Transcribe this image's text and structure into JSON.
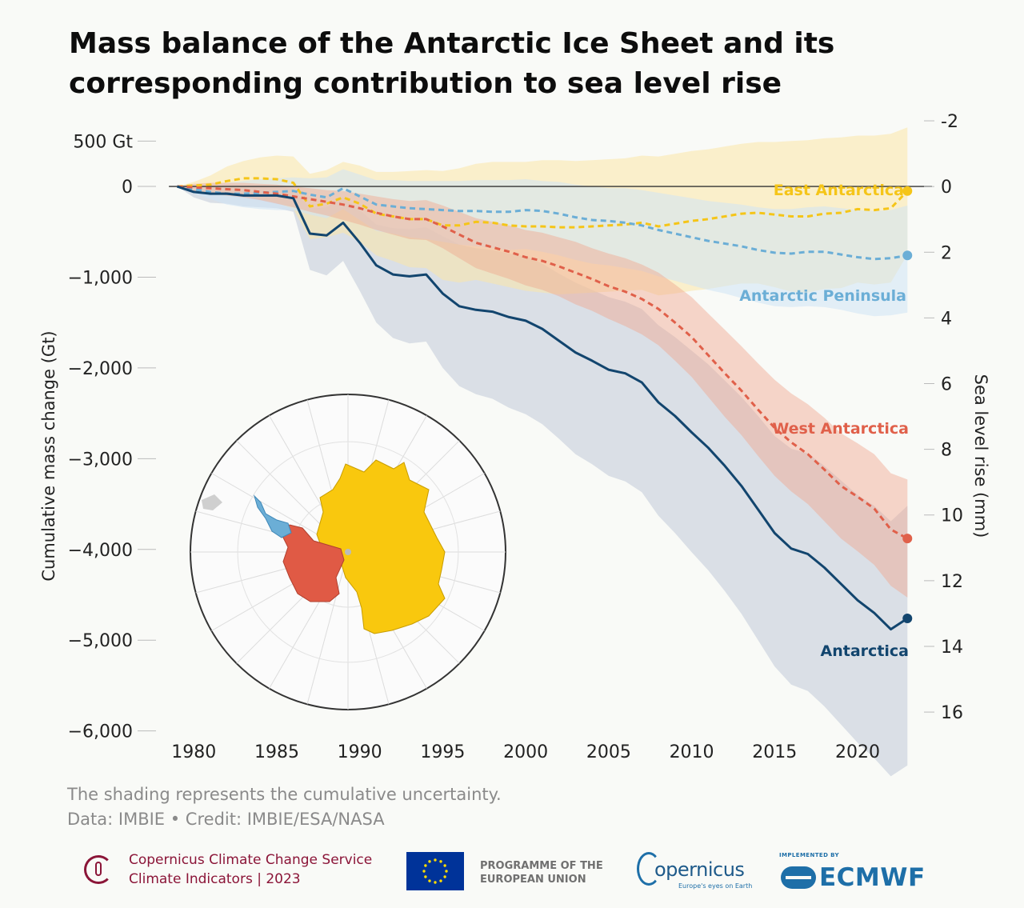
{
  "title": "Mass balance of the Antarctic Ice Sheet and its corresponding contribution to sea level rise",
  "note": {
    "shading": "The shading represents the cumulative uncertainty.",
    "credit": "Data: IMBIE • Credit: IMBIE/ESA/NASA"
  },
  "map_icon": "antarctica-region-map-icon",
  "chart_data": {
    "type": "line",
    "title": "Mass balance of the Antarctic Ice Sheet and its corresponding contribution to sea level rise",
    "xlabel": "",
    "ylabel": "Cumulative mass change (Gt)",
    "y2label": "Sea level rise (mm)",
    "xlim": [
      1977,
      2024
    ],
    "ylim": [
      -6100,
      600
    ],
    "y2lim": [
      16.85,
      -1.66
    ],
    "grid": false,
    "x_ticks": [
      1980,
      1985,
      1990,
      1995,
      2000,
      2005,
      2010,
      2015,
      2020
    ],
    "x_tick_labels": [
      "1980",
      "1985",
      "1990",
      "1995",
      "2000",
      "2005",
      "2010",
      "2015",
      "2020"
    ],
    "y_ticks": [
      500,
      0,
      -1000,
      -2000,
      -3000,
      -4000,
      -5000,
      -6000
    ],
    "y_tick_labels": [
      "500 Gt",
      "0",
      "−1,000",
      "−2,000",
      "−3,000",
      "−4,000",
      "−5,000",
      "−6,000"
    ],
    "y2_ticks": [
      -2,
      0,
      2,
      4,
      6,
      8,
      10,
      12,
      14,
      16
    ],
    "y2_tick_labels": [
      "-2",
      "0",
      "2",
      "4",
      "6",
      "8",
      "10",
      "12",
      "14",
      "16"
    ],
    "x": [
      1979,
      1980,
      1981,
      1982,
      1983,
      1984,
      1985,
      1986,
      1987,
      1988,
      1989,
      1990,
      1991,
      1992,
      1993,
      1994,
      1995,
      1996,
      1997,
      1998,
      1999,
      2000,
      2001,
      2002,
      2003,
      2004,
      2005,
      2006,
      2007,
      2008,
      2009,
      2010,
      2011,
      2012,
      2013,
      2014,
      2015,
      2016,
      2017,
      2018,
      2019,
      2020,
      2021,
      2022,
      2023
    ],
    "series": [
      {
        "name": "East Antarctica",
        "color": "#f5c518",
        "style": "dashed",
        "end_marker": true,
        "values": [
          0,
          10,
          20,
          60,
          90,
          90,
          80,
          40,
          -220,
          -190,
          -120,
          -190,
          -300,
          -330,
          -360,
          -360,
          -430,
          -430,
          -390,
          -400,
          -430,
          -440,
          -440,
          -450,
          -450,
          -440,
          -430,
          -420,
          -400,
          -440,
          -410,
          -380,
          -360,
          -330,
          -300,
          -290,
          -310,
          -330,
          -330,
          -300,
          -290,
          -250,
          -260,
          -240,
          -50
        ],
        "upper": [
          0,
          50,
          120,
          220,
          280,
          320,
          340,
          330,
          140,
          180,
          270,
          230,
          160,
          160,
          170,
          180,
          170,
          200,
          250,
          270,
          270,
          270,
          290,
          290,
          280,
          290,
          300,
          310,
          340,
          330,
          360,
          390,
          410,
          440,
          470,
          490,
          490,
          500,
          510,
          530,
          540,
          560,
          560,
          580,
          650
        ],
        "lower": [
          0,
          -50,
          -90,
          -100,
          -100,
          -140,
          -180,
          -250,
          -580,
          -560,
          -510,
          -610,
          -760,
          -820,
          -890,
          -900,
          -1030,
          -1060,
          -1030,
          -1070,
          -1110,
          -1150,
          -1170,
          -1190,
          -1180,
          -1170,
          -1160,
          -1150,
          -1140,
          -1200,
          -1180,
          -1150,
          -1130,
          -1100,
          -1070,
          -1070,
          -1110,
          -1160,
          -1170,
          -1130,
          -1120,
          -1060,
          -1080,
          -1060,
          -750
        ]
      },
      {
        "name": "Antarctic Peninsula",
        "color": "#6baed6",
        "style": "dashed",
        "end_marker": true,
        "values": [
          0,
          -30,
          -60,
          -80,
          -80,
          -70,
          -60,
          -50,
          -90,
          -120,
          -20,
          -110,
          -200,
          -220,
          -240,
          -250,
          -260,
          -270,
          -270,
          -280,
          -280,
          -260,
          -270,
          -300,
          -340,
          -370,
          -380,
          -400,
          -430,
          -480,
          -520,
          -560,
          -600,
          -630,
          -660,
          -700,
          -730,
          -740,
          -720,
          -720,
          -750,
          -780,
          -800,
          -790,
          -760
        ],
        "upper": [
          0,
          20,
          30,
          40,
          60,
          80,
          90,
          100,
          90,
          100,
          190,
          130,
          70,
          70,
          60,
          60,
          60,
          60,
          70,
          70,
          70,
          80,
          60,
          50,
          20,
          0,
          -20,
          -20,
          -40,
          -70,
          -100,
          -130,
          -160,
          -180,
          -200,
          -230,
          -250,
          -250,
          -230,
          -220,
          -240,
          -260,
          -270,
          -260,
          -210
        ],
        "lower": [
          0,
          -80,
          -140,
          -200,
          -230,
          -250,
          -260,
          -260,
          -310,
          -350,
          -250,
          -370,
          -490,
          -520,
          -560,
          -580,
          -610,
          -640,
          -660,
          -680,
          -700,
          -690,
          -720,
          -760,
          -810,
          -850,
          -870,
          -900,
          -930,
          -990,
          -1040,
          -1090,
          -1140,
          -1180,
          -1230,
          -1280,
          -1320,
          -1330,
          -1320,
          -1330,
          -1360,
          -1400,
          -1430,
          -1420,
          -1390
        ]
      },
      {
        "name": "West Antarctica",
        "color": "#e0604a",
        "style": "dashed",
        "end_marker": true,
        "values": [
          0,
          -10,
          -20,
          -30,
          -40,
          -60,
          -80,
          -110,
          -140,
          -170,
          -200,
          -240,
          -290,
          -330,
          -360,
          -360,
          -440,
          -530,
          -620,
          -670,
          -720,
          -780,
          -820,
          -880,
          -950,
          -1020,
          -1100,
          -1160,
          -1240,
          -1350,
          -1500,
          -1660,
          -1860,
          -2060,
          -2250,
          -2460,
          -2660,
          -2820,
          -2950,
          -3120,
          -3300,
          -3420,
          -3550,
          -3780,
          -3880
        ],
        "upper": [
          0,
          30,
          40,
          40,
          40,
          30,
          20,
          0,
          -20,
          -40,
          -50,
          -80,
          -110,
          -140,
          -160,
          -150,
          -210,
          -280,
          -350,
          -390,
          -430,
          -480,
          -510,
          -560,
          -610,
          -680,
          -740,
          -790,
          -860,
          -950,
          -1080,
          -1220,
          -1400,
          -1580,
          -1760,
          -1950,
          -2130,
          -2280,
          -2400,
          -2550,
          -2720,
          -2830,
          -2950,
          -3160,
          -3230
        ],
        "lower": [
          0,
          -50,
          -80,
          -100,
          -120,
          -150,
          -190,
          -230,
          -280,
          -320,
          -370,
          -420,
          -480,
          -530,
          -580,
          -590,
          -680,
          -790,
          -900,
          -960,
          -1020,
          -1090,
          -1140,
          -1210,
          -1300,
          -1370,
          -1460,
          -1540,
          -1630,
          -1750,
          -1920,
          -2100,
          -2320,
          -2540,
          -2740,
          -2970,
          -3190,
          -3360,
          -3500,
          -3690,
          -3880,
          -4020,
          -4170,
          -4400,
          -4530
        ]
      },
      {
        "name": "Antarctica",
        "color": "#12456e",
        "style": "solid",
        "end_marker": true,
        "values": [
          0,
          -60,
          -80,
          -80,
          -100,
          -100,
          -100,
          -130,
          -520,
          -540,
          -400,
          -620,
          -870,
          -970,
          -990,
          -970,
          -1180,
          -1320,
          -1360,
          -1380,
          -1440,
          -1480,
          -1570,
          -1700,
          -1830,
          -1920,
          -2020,
          -2060,
          -2160,
          -2380,
          -2530,
          -2710,
          -2880,
          -3080,
          -3300,
          -3560,
          -3820,
          -3990,
          -4050,
          -4200,
          -4380,
          -4560,
          -4700,
          -4880,
          -4760
        ],
        "upper": [
          0,
          -10,
          10,
          20,
          10,
          0,
          0,
          -30,
          -240,
          -230,
          -120,
          -260,
          -420,
          -460,
          -470,
          -450,
          -550,
          -640,
          -680,
          -700,
          -740,
          -770,
          -850,
          -960,
          -1060,
          -1140,
          -1220,
          -1270,
          -1350,
          -1530,
          -1660,
          -1810,
          -1960,
          -2140,
          -2320,
          -2530,
          -2750,
          -2890,
          -2940,
          -3080,
          -3240,
          -3400,
          -3520,
          -3690,
          -3520
        ],
        "lower": [
          0,
          -120,
          -180,
          -190,
          -220,
          -230,
          -240,
          -280,
          -920,
          -980,
          -820,
          -1150,
          -1500,
          -1670,
          -1730,
          -1710,
          -2000,
          -2200,
          -2290,
          -2340,
          -2440,
          -2510,
          -2620,
          -2780,
          -2950,
          -3060,
          -3190,
          -3250,
          -3370,
          -3630,
          -3820,
          -4030,
          -4230,
          -4460,
          -4710,
          -5000,
          -5290,
          -5490,
          -5560,
          -5730,
          -5930,
          -6130,
          -6300,
          -6500,
          -6380
        ]
      }
    ],
    "annotations": [
      {
        "text": "East Antarctica",
        "series": "East Antarctica"
      },
      {
        "text": "Antarctic Peninsula",
        "series": "Antarctic Peninsula"
      },
      {
        "text": "West Antarctica",
        "series": "West Antarctica"
      },
      {
        "text": "Antarctica",
        "series": "Antarctica"
      }
    ]
  },
  "footer": {
    "c3s_line1": "Copernicus Climate Change Service",
    "c3s_line2": "Climate Indicators | 2023",
    "eu_programme": "PROGRAMME OF THE EUROPEAN UNION",
    "copernicus_word": "opernicus",
    "copernicus_tag": "Europe's eyes on Earth",
    "ecmwf_impl": "IMPLEMENTED BY",
    "ecmwf_word": "ECMWF"
  }
}
